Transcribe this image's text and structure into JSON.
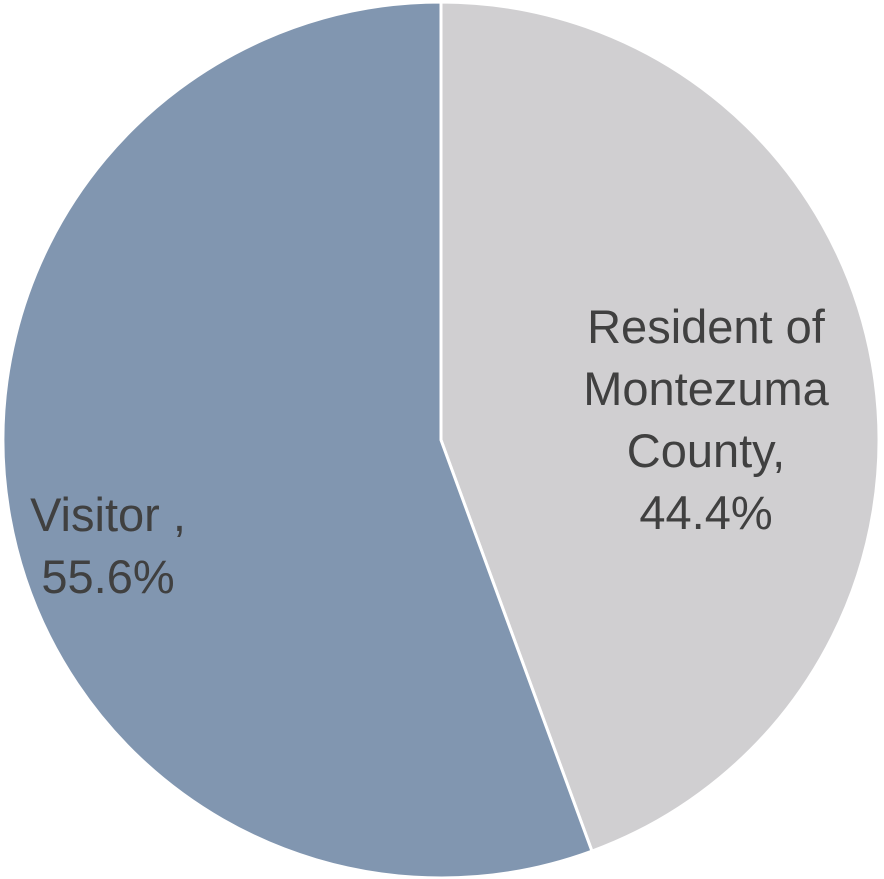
{
  "chart_data": {
    "type": "pie",
    "categories": [
      "Resident of Montezuma County,",
      "Visitor ,"
    ],
    "values": [
      44.4,
      55.6
    ],
    "value_labels": [
      "44.4%",
      "55.6%"
    ],
    "colors": [
      "#d0cfd1",
      "#8196b0"
    ]
  }
}
